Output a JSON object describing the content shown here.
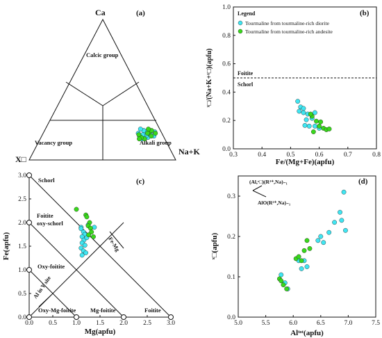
{
  "colors": {
    "diorite": "#40e6f2",
    "andesite": "#39d81c",
    "stroke": "#1a1a1a"
  },
  "chart_data": [
    {
      "type": "scatter",
      "panel": "(a)",
      "kind": "ternary",
      "apices": {
        "top": "Ca",
        "left": "X□",
        "right": "Na+K"
      },
      "fields": [
        "Calcic group",
        "Vacancy group",
        "Alkali group"
      ],
      "series": [
        {
          "name": "Tourmaline from tourmaline-rich diorite",
          "points": [
            [
              0.16,
              0.2
            ],
            [
              0.18,
              0.21
            ],
            [
              0.17,
              0.18
            ],
            [
              0.16,
              0.17
            ],
            [
              0.18,
              0.15
            ],
            [
              0.2,
              0.16
            ],
            [
              0.17,
              0.13
            ],
            [
              0.19,
              0.11
            ],
            [
              0.21,
              0.14
            ],
            [
              0.17,
              0.24
            ],
            [
              0.2,
              0.23
            ],
            [
              0.15,
              0.16
            ],
            [
              0.22,
              0.11
            ]
          ]
        },
        {
          "name": "Tourmaline from tourmaline-rich andesite",
          "points": [
            [
              0.19,
              0.24
            ],
            [
              0.17,
              0.22
            ],
            [
              0.15,
              0.18
            ],
            [
              0.2,
              0.19
            ],
            [
              0.19,
              0.18
            ],
            [
              0.21,
              0.2
            ],
            [
              0.16,
              0.15
            ],
            [
              0.18,
              0.12
            ],
            [
              0.15,
              0.14
            ],
            [
              0.22,
              0.17
            ]
          ]
        }
      ]
    },
    {
      "type": "scatter",
      "panel": "(b)",
      "xlabel": "Fe/(Mg+Fe)(apfu)",
      "ylabel": "ˣ□/(Na+K+ˣ□)(apfu)",
      "xlim": [
        0.3,
        0.8
      ],
      "ylim": [
        0,
        1.0
      ],
      "xticks": [
        "0.3",
        "0.4",
        "0.5",
        "0.6",
        "0.7",
        "0.8"
      ],
      "yticks": [
        "0.0",
        "0.2",
        "0.4",
        "0.6",
        "0.8",
        "1.0"
      ],
      "legend_title": "Legend",
      "boundary_y": 0.5,
      "labels": [
        "Foitite",
        "Schorl"
      ],
      "series": [
        {
          "name": "Tourmaline from tourmaline-rich diorite",
          "points": [
            [
              0.525,
              0.335
            ],
            [
              0.535,
              0.295
            ],
            [
              0.53,
              0.265
            ],
            [
              0.545,
              0.255
            ],
            [
              0.56,
              0.245
            ],
            [
              0.555,
              0.205
            ],
            [
              0.575,
              0.215
            ],
            [
              0.55,
              0.165
            ],
            [
              0.565,
              0.16
            ],
            [
              0.585,
              0.16
            ],
            [
              0.6,
              0.145
            ],
            [
              0.585,
              0.255
            ],
            [
              0.545,
              0.285
            ]
          ]
        },
        {
          "name": "Tourmaline from tourmaline-rich andesite",
          "points": [
            [
              0.575,
              0.23
            ],
            [
              0.59,
              0.195
            ],
            [
              0.605,
              0.19
            ],
            [
              0.6,
              0.16
            ],
            [
              0.615,
              0.145
            ],
            [
              0.625,
              0.135
            ],
            [
              0.635,
              0.14
            ],
            [
              0.58,
              0.12
            ],
            [
              0.57,
              0.245
            ]
          ]
        }
      ]
    },
    {
      "type": "scatter",
      "panel": "(c)",
      "xlabel": "Mg(apfu)",
      "ylabel": "Fe(apfu)",
      "xlim": [
        0,
        3.0
      ],
      "ylim": [
        0,
        3.0
      ],
      "xticks": [
        "0.0",
        "0.5",
        "1.0",
        "1.5",
        "2.0",
        "2.5",
        "3.0"
      ],
      "yticks": [
        "0.0",
        "0.5",
        "1.0",
        "1.5",
        "2.0",
        "2.5",
        "3.0"
      ],
      "end_members": [
        "Schorl",
        "Foitite",
        "oxy-schorl",
        "Oxy-foitite",
        "Oxy-Mg-foitite",
        "Mg-foitite",
        "Foitite"
      ],
      "vectors": [
        "Fe-Mg",
        "Al in Y site"
      ],
      "series": [
        {
          "name": "Tourmaline from tourmaline-rich diorite",
          "points": [
            [
              1.1,
              1.9
            ],
            [
              1.1,
              1.87
            ],
            [
              1.15,
              1.8
            ],
            [
              1.18,
              1.75
            ],
            [
              1.12,
              1.7
            ],
            [
              1.16,
              1.63
            ],
            [
              1.12,
              1.57
            ],
            [
              1.18,
              1.52
            ],
            [
              1.1,
              1.46
            ],
            [
              1.15,
              1.4
            ],
            [
              1.2,
              1.36
            ],
            [
              1.12,
              1.31
            ],
            [
              1.25,
              1.95
            ],
            [
              1.38,
              1.9
            ],
            [
              1.22,
              1.68
            ]
          ]
        },
        {
          "name": "Tourmaline from tourmaline-rich andesite",
          "points": [
            [
              1.0,
              2.28
            ],
            [
              1.2,
              2.16
            ],
            [
              1.22,
              2.12
            ],
            [
              1.28,
              2.0
            ],
            [
              1.25,
              1.93
            ],
            [
              1.3,
              1.88
            ],
            [
              1.32,
              1.8
            ],
            [
              1.26,
              1.74
            ],
            [
              1.36,
              1.7
            ]
          ]
        }
      ]
    },
    {
      "type": "scatter",
      "panel": "(d)",
      "xlabel": "Alᵗᵒᵗ(apfu)",
      "ylabel": "ˣ□(apfu)",
      "xlim": [
        5.0,
        7.5
      ],
      "ylim": [
        0,
        0.35
      ],
      "xticks": [
        "5.0",
        "5.5",
        "6.0",
        "6.5",
        "7.0",
        "7.5"
      ],
      "yticks": [
        "0.0",
        "0.1",
        "0.2",
        "0.3"
      ],
      "vectors": [
        "(Al,ˣ□)(R²⁺,Na)₋₁",
        "AlO(R²⁺,Na)₋₁"
      ],
      "series": [
        {
          "name": "Tourmaline from tourmaline-rich diorite",
          "points": [
            [
              5.78,
              0.105
            ],
            [
              5.85,
              0.085
            ],
            [
              5.9,
              0.07
            ],
            [
              6.15,
              0.12
            ],
            [
              6.25,
              0.125
            ],
            [
              6.45,
              0.19
            ],
            [
              6.5,
              0.2
            ],
            [
              6.55,
              0.185
            ],
            [
              6.65,
              0.21
            ],
            [
              6.75,
              0.235
            ],
            [
              6.85,
              0.26
            ],
            [
              6.88,
              0.24
            ],
            [
              6.92,
              0.31
            ],
            [
              6.95,
              0.215
            ],
            [
              6.1,
              0.14
            ],
            [
              6.2,
              0.14
            ]
          ]
        },
        {
          "name": "Tourmaline from tourmaline-rich andesite",
          "points": [
            [
              5.75,
              0.095
            ],
            [
              5.78,
              0.09
            ],
            [
              5.82,
              0.08
            ],
            [
              5.88,
              0.07
            ],
            [
              6.05,
              0.145
            ],
            [
              6.15,
              0.14
            ],
            [
              6.2,
              0.165
            ],
            [
              6.25,
              0.19
            ],
            [
              6.3,
              0.17
            ],
            [
              6.1,
              0.15
            ]
          ]
        }
      ]
    }
  ]
}
